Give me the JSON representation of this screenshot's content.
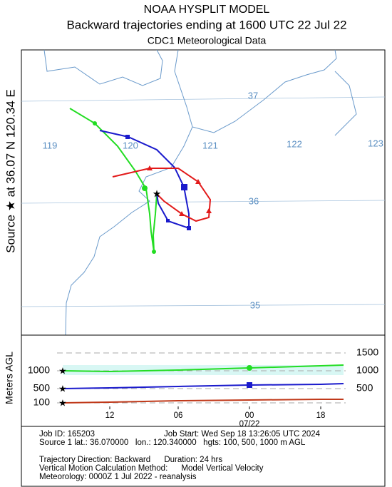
{
  "header": {
    "title": "NOAA HYSPLIT MODEL",
    "subtitle": "Backward trajectories ending at 1600 UTC 22 Jul 22",
    "data_source": "CDC1 Meteorological Data"
  },
  "side_label": "Source ★ at  36.07 N  120.34 E",
  "map": {
    "longitude_labels": [
      "119",
      "120",
      "121",
      "122",
      "123"
    ],
    "latitude_labels": [
      "37",
      "36",
      "35"
    ]
  },
  "height_panel": {
    "y_label": "Meters AGL",
    "left_labels": [
      "1000",
      "500",
      "100"
    ],
    "right_labels": [
      "1500",
      "1000",
      "500"
    ],
    "time_labels": [
      "12",
      "06",
      "00",
      "18"
    ],
    "date_label": "07/22"
  },
  "footer": {
    "job_id": "Job ID: 165203",
    "job_start": "Job Start: Wed Sep 18 13:26:05 UTC 2024",
    "source": "Source 1 lat.: 36.070000   lon.: 120.340000   hgts: 100, 500, 1000 m AGL",
    "direction": "Trajectory Direction: Backward      Duration: 24 hrs",
    "method": "Vertical Motion Calculation Method:      Model Vertical Velocity",
    "meteorology": "Meteorology: 0000Z 1 Jul 2022 - reanalysis"
  }
}
